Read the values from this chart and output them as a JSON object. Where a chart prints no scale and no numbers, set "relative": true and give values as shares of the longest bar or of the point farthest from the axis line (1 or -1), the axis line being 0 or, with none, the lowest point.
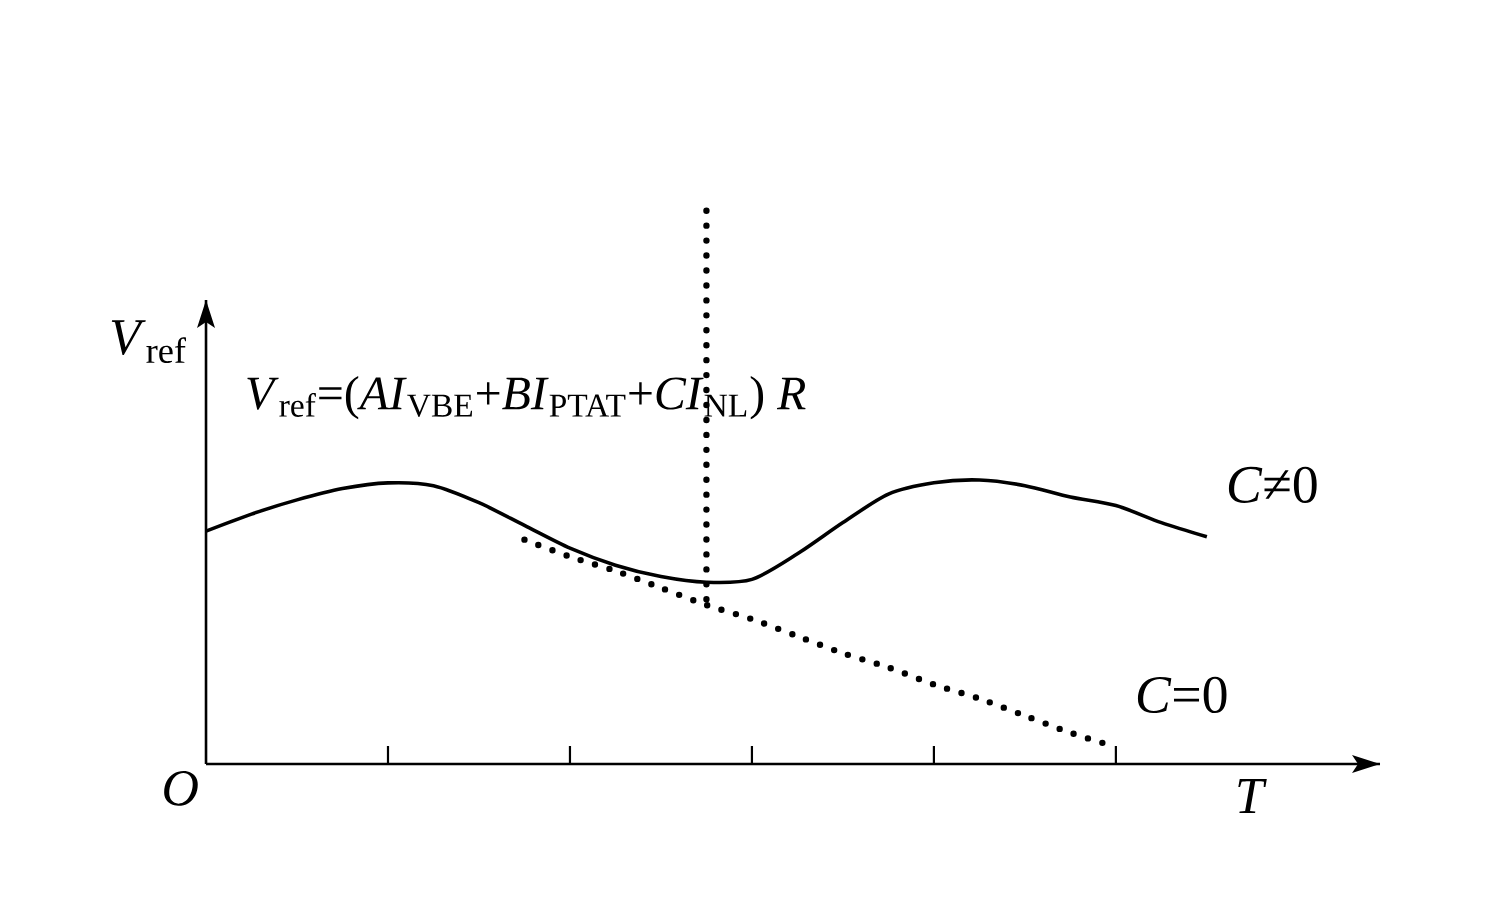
{
  "chart_data": {
    "type": "line",
    "relative": true,
    "xlabel": "*T*",
    "ylabel": "*V*$_{ref}$",
    "categories": [
      null,
      null,
      null,
      null,
      null,
      null,
      null,
      null,
      null,
      null,
      null,
      null,
      null,
      null,
      null,
      null,
      null,
      null,
      null,
      null,
      null,
      null,
      null
    ],
    "series": [
      {
        "name": "*C*≠0",
        "color": "#000000",
        "line_style": "solid",
        "values": [
          0.82,
          0.88,
          0.93,
          0.97,
          0.99,
          0.98,
          0.92,
          0.84,
          0.76,
          0.7,
          0.66,
          0.64,
          0.65,
          0.74,
          0.85,
          0.95,
          0.99,
          1,
          0.98,
          0.94,
          0.91,
          0.85,
          0.8
        ]
      },
      {
        "name": "*C*=0",
        "color": "#000000",
        "line_style": "dotted",
        "values": [
          null,
          null,
          null,
          null,
          null,
          null,
          null,
          0.79,
          0.73,
          0.68,
          0.62,
          0.56,
          0.51,
          0.45,
          0.39,
          0.34,
          0.28,
          0.23,
          0.17,
          0.11,
          0.06,
          null,
          null
        ]
      }
    ],
    "annotations": [
      "*V*$_{ref}$=(*AI*$_{VBE}$+*BI*$_{PTAT}$+*CI*$_{NL}$) *R*",
      "*O*"
    ]
  }
}
